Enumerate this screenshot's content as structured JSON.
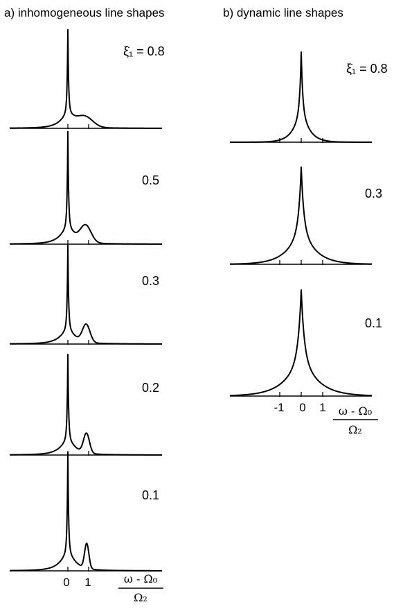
{
  "chart_data": [
    {
      "type": "line",
      "title": "a) inhomogeneous line shapes",
      "parameter_symbol": "ξ̇₁",
      "xlabel_numerator": "ω - Ω₀",
      "xlabel_denominator": "Ω₂",
      "xticks": [
        0,
        1
      ],
      "xtick_labels": [
        "0",
        "1"
      ],
      "series": [
        {
          "label": "ξ̇₁ = 0.8",
          "value_text": "0.8",
          "param": 0.8
        },
        {
          "label": "0.5",
          "value_text": "0.5",
          "param": 0.5
        },
        {
          "label": "0.3",
          "value_text": "0.3",
          "param": 0.3
        },
        {
          "label": "0.2",
          "value_text": "0.2",
          "param": 0.2
        },
        {
          "label": "0.1",
          "value_text": "0.1",
          "param": 0.1
        }
      ]
    },
    {
      "type": "line",
      "title": "b) dynamic line shapes",
      "parameter_symbol": "ξ̇₁",
      "xlabel_numerator": "ω - Ω₀",
      "xlabel_denominator": "Ω₂",
      "xticks": [
        -1,
        0,
        1
      ],
      "xtick_labels": [
        "-1",
        "0",
        "1"
      ],
      "series": [
        {
          "label": "ξ̇₁ = 0.8",
          "value_text": "0.8",
          "param": 0.8
        },
        {
          "label": "0.3",
          "value_text": "0.3",
          "param": 0.3
        },
        {
          "label": "0.1",
          "value_text": "0.1",
          "param": 0.1
        }
      ]
    }
  ]
}
